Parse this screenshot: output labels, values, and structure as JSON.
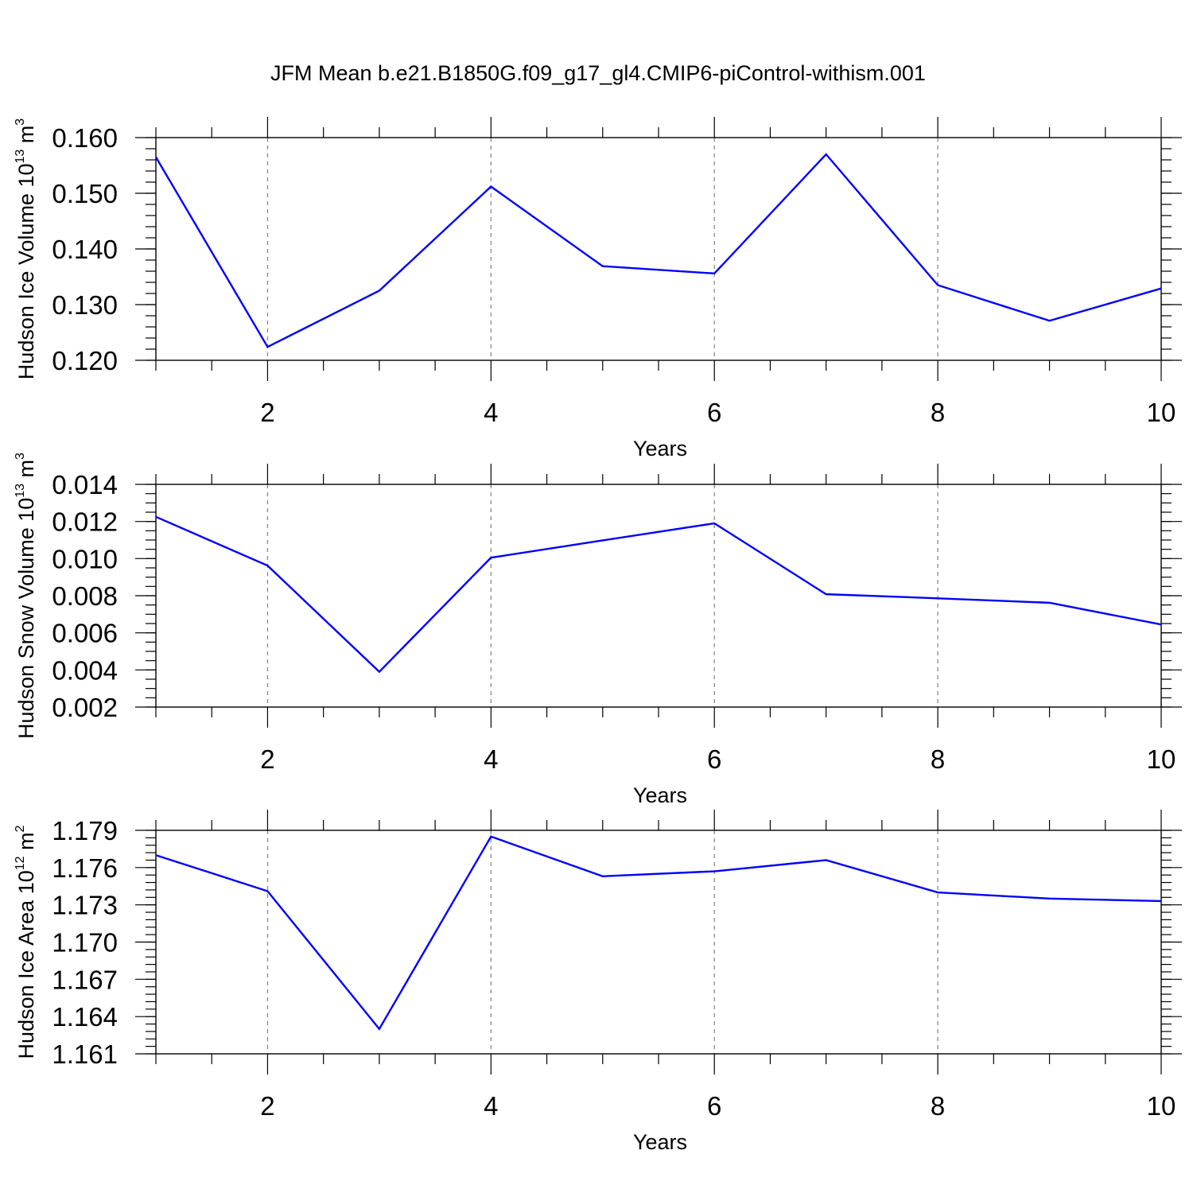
{
  "figure_title": "JFM Mean b.e21.B1850G.f09_g17_gl4.CMIP6-piControl-withism.001",
  "colors": {
    "line": "#0000ff",
    "axes": "#000000",
    "grid": "#808080"
  },
  "chart_data": [
    {
      "type": "line",
      "title": "",
      "xlabel": "Years",
      "ylabel_text": "Hudson Ice Volume 10",
      "ylabel_exp": "13",
      "ylabel_unit": "m",
      "ylabel_unit_exp": "3",
      "xlim": [
        1,
        10
      ],
      "ylim": [
        0.12,
        0.16
      ],
      "x_ticks": [
        2,
        4,
        6,
        8,
        10
      ],
      "y_ticks": [
        0.12,
        0.13,
        0.14,
        0.15,
        0.16
      ],
      "y_tick_labels": [
        "0.120",
        "0.130",
        "0.140",
        "0.150",
        "0.160"
      ],
      "y_minor_step": 0.002,
      "x": [
        1,
        2,
        3,
        4,
        5,
        6,
        7,
        8,
        9,
        10
      ],
      "series": [
        {
          "values": [
            0.1565,
            0.1224,
            0.1325,
            0.1512,
            0.1369,
            0.1356,
            0.157,
            0.1335,
            0.1271,
            0.1329
          ]
        }
      ],
      "grid": "dashed vertical lines at major x ticks"
    },
    {
      "type": "line",
      "title": "",
      "xlabel": "Years",
      "ylabel_text": "Hudson Snow Volume 10",
      "ylabel_exp": "13",
      "ylabel_unit": "m",
      "ylabel_unit_exp": "3",
      "xlim": [
        1,
        10
      ],
      "ylim": [
        0.002,
        0.014
      ],
      "x_ticks": [
        2,
        4,
        6,
        8,
        10
      ],
      "y_ticks": [
        0.002,
        0.004,
        0.006,
        0.008,
        0.01,
        0.012,
        0.014
      ],
      "y_tick_labels": [
        "0.002",
        "0.004",
        "0.006",
        "0.008",
        "0.010",
        "0.012",
        "0.014"
      ],
      "y_minor_step": 0.0005,
      "x": [
        1,
        2,
        3,
        4,
        5,
        6,
        7,
        8,
        9,
        10
      ],
      "series": [
        {
          "values": [
            0.01225,
            0.00962,
            0.0039,
            0.01005,
            0.01098,
            0.0119,
            0.00808,
            0.00786,
            0.00762,
            0.00645
          ]
        }
      ],
      "grid": "dashed vertical lines at major x ticks"
    },
    {
      "type": "line",
      "title": "",
      "xlabel": "Years",
      "ylabel_text": "Hudson Ice Area 10",
      "ylabel_exp": "12",
      "ylabel_unit": "m",
      "ylabel_unit_exp": "2",
      "xlim": [
        1,
        10
      ],
      "ylim": [
        1.161,
        1.179
      ],
      "x_ticks": [
        2,
        4,
        6,
        8,
        10
      ],
      "y_ticks": [
        1.161,
        1.164,
        1.167,
        1.17,
        1.173,
        1.176,
        1.179
      ],
      "y_tick_labels": [
        "1.161",
        "1.164",
        "1.167",
        "1.170",
        "1.173",
        "1.176",
        "1.179"
      ],
      "y_minor_step": 0.0006,
      "x": [
        1,
        2,
        3,
        4,
        5,
        6,
        7,
        8,
        9,
        10
      ],
      "series": [
        {
          "values": [
            1.177,
            1.1741,
            1.163,
            1.1785,
            1.1753,
            1.1757,
            1.1766,
            1.174,
            1.1735,
            1.1733
          ]
        }
      ],
      "grid": "dashed vertical lines at major x ticks"
    }
  ]
}
